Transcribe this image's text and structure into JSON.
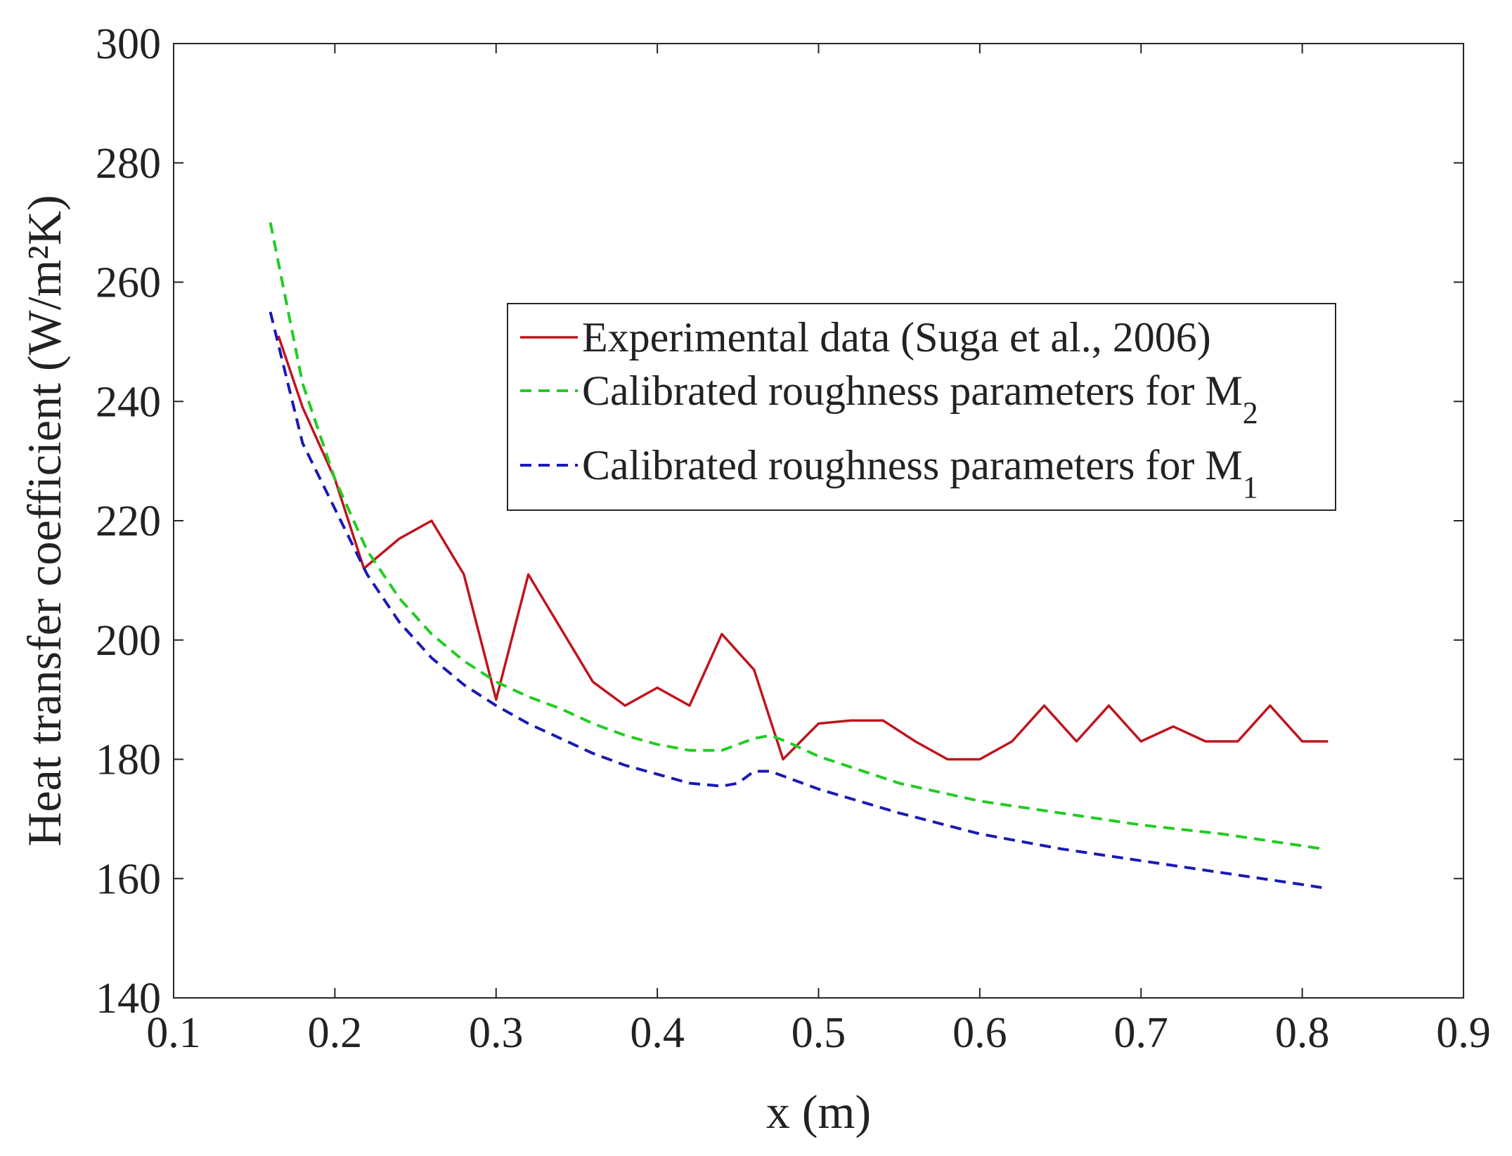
{
  "chart_data": {
    "type": "line",
    "xlabel": "x (m)",
    "ylabel": "Heat transfer coefficient (W/m²K)",
    "xlim": [
      0.1,
      0.9
    ],
    "ylim": [
      140,
      300
    ],
    "xticks": [
      "0.1",
      "0.2",
      "0.3",
      "0.4",
      "0.5",
      "0.6",
      "0.7",
      "0.8",
      "0.9"
    ],
    "yticks": [
      "140",
      "160",
      "180",
      "200",
      "220",
      "240",
      "260",
      "280",
      "300"
    ],
    "legend_position": "upper-middle-right",
    "series": [
      {
        "name": "Experimental data (Suga et al., 2006)",
        "legend_main": "Experimental data (Suga et al., 2006)",
        "legend_sub": "",
        "color": "#c0141e",
        "style": "solid",
        "x": [
          0.165,
          0.18,
          0.2,
          0.218,
          0.24,
          0.26,
          0.28,
          0.3,
          0.32,
          0.34,
          0.36,
          0.38,
          0.4,
          0.42,
          0.44,
          0.46,
          0.478,
          0.5,
          0.52,
          0.54,
          0.56,
          0.58,
          0.6,
          0.62,
          0.64,
          0.66,
          0.68,
          0.7,
          0.72,
          0.74,
          0.76,
          0.78,
          0.8,
          0.816
        ],
        "y": [
          251,
          239,
          227,
          212,
          217,
          220,
          211,
          190,
          211,
          202,
          193,
          189,
          192,
          189,
          201,
          195,
          180,
          186,
          186.5,
          186.5,
          183,
          180,
          180,
          183,
          189,
          183,
          189,
          183,
          185.5,
          183,
          183,
          189,
          183,
          183
        ]
      },
      {
        "name": "Calibrated roughness parameters for M2",
        "legend_main": "Calibrated roughness parameters for M",
        "legend_sub": "2",
        "color": "#22cc22",
        "style": "dashed",
        "x": [
          0.16,
          0.18,
          0.2,
          0.22,
          0.24,
          0.26,
          0.28,
          0.3,
          0.32,
          0.34,
          0.36,
          0.38,
          0.4,
          0.42,
          0.44,
          0.46,
          0.47,
          0.48,
          0.5,
          0.55,
          0.6,
          0.65,
          0.7,
          0.75,
          0.8,
          0.812
        ],
        "y": [
          270,
          243,
          227,
          215,
          207,
          201,
          196.5,
          193,
          190.5,
          188.5,
          186,
          184,
          182.5,
          181.5,
          181.5,
          183.5,
          184,
          183,
          180.5,
          176,
          173,
          171,
          169,
          167.5,
          165.5,
          165
        ]
      },
      {
        "name": "Calibrated roughness parameters for M1",
        "legend_main": "Calibrated roughness parameters for M",
        "legend_sub": "1",
        "color": "#1a1ab4",
        "style": "dashed",
        "x": [
          0.16,
          0.18,
          0.2,
          0.22,
          0.24,
          0.26,
          0.28,
          0.3,
          0.32,
          0.34,
          0.36,
          0.38,
          0.4,
          0.42,
          0.44,
          0.45,
          0.46,
          0.47,
          0.48,
          0.5,
          0.55,
          0.6,
          0.65,
          0.7,
          0.75,
          0.8,
          0.812
        ],
        "y": [
          255,
          233,
          222,
          211,
          203,
          197,
          192.5,
          189,
          186,
          183.5,
          181,
          179,
          177.5,
          176,
          175.5,
          176,
          178,
          178,
          177,
          175,
          171,
          167.5,
          165,
          163,
          161,
          159,
          158.5
        ]
      }
    ]
  }
}
